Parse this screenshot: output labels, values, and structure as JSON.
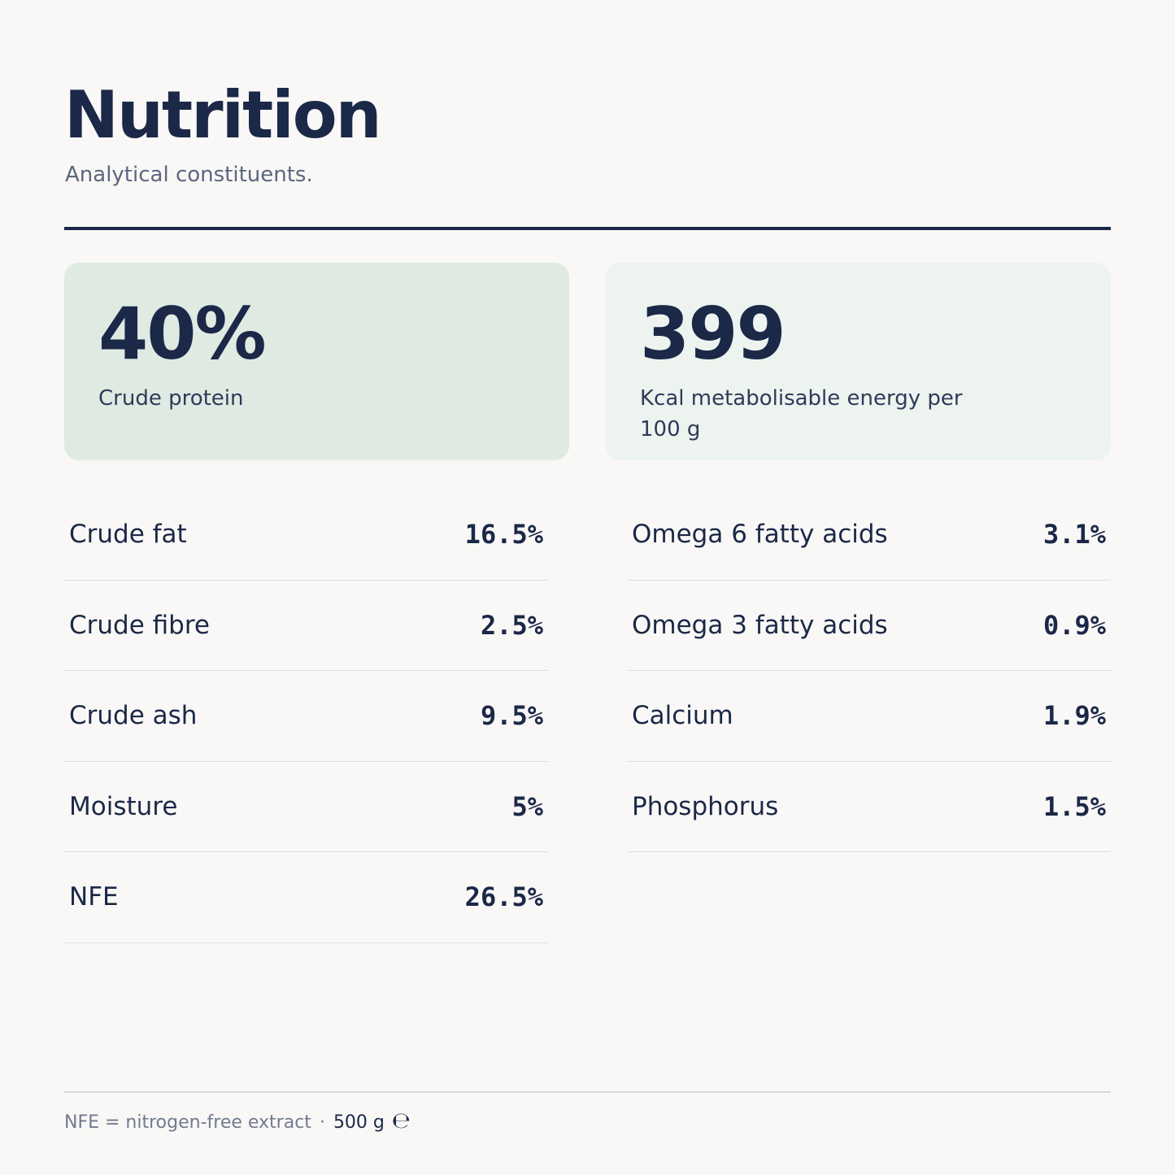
{
  "header": {
    "title": "Nutrition",
    "subtitle": "Analytical constituents."
  },
  "highlights": {
    "protein": {
      "value": "40%",
      "label": "Crude protein"
    },
    "energy": {
      "value": "399",
      "label": "Kcal metabolisable energy per 100 g"
    }
  },
  "constituents_left": [
    {
      "name": "Crude fat",
      "value": "16.5%"
    },
    {
      "name": "Crude fibre",
      "value": "2.5%"
    },
    {
      "name": "Crude ash",
      "value": "9.5%"
    },
    {
      "name": "Moisture",
      "value": "5%"
    },
    {
      "name": "NFE",
      "value": "26.5%"
    }
  ],
  "constituents_right": [
    {
      "name": "Omega 6 fatty acids",
      "value": "3.1%"
    },
    {
      "name": "Omega 3 fatty acids",
      "value": "0.9%"
    },
    {
      "name": "Calcium",
      "value": "1.9%"
    },
    {
      "name": "Phosphorus",
      "value": "1.5%"
    }
  ],
  "footer": {
    "note": "NFE = nitrogen-free extract",
    "separator": "·",
    "weight": "500 g",
    "estimated_mark": "℮"
  }
}
